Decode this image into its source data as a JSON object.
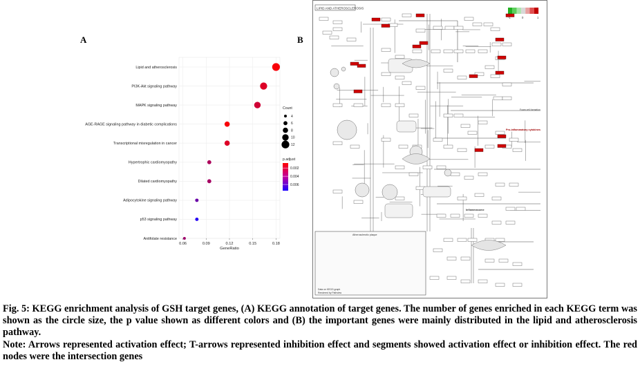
{
  "panel_a": {
    "letter": "A"
  },
  "panel_b": {
    "letter": "B",
    "map_title": "LIPID AND ATHEROSCLEROSIS",
    "legend_ticks": [
      "-1",
      "0",
      "1"
    ],
    "section_labels": [
      "Inflammasome",
      "Pro-inflammatory cytokines",
      "Atherosclerotic plaque",
      "Foam cell formation"
    ],
    "footer": [
      "Data on KEGG graph",
      "Rendered by Pathview"
    ],
    "red_node_color": "#d00000"
  },
  "chart_data": {
    "type": "scatter",
    "title": "",
    "xlabel": "GeneRatio",
    "ylabel": "",
    "xlim": [
      0.055,
      0.185
    ],
    "xticks": [
      "0.06",
      "0.09",
      "0.12",
      "0.15",
      "0.18"
    ],
    "xtick_values": [
      0.06,
      0.09,
      0.12,
      0.15,
      0.18
    ],
    "grid": true,
    "categories": [
      "Lipid and atherosclerosis",
      "PI3K-Akt signaling pathway",
      "MAPK signaling pathway",
      "AGE-RAGE signaling pathway in diabetic complications",
      "Transcriptional misregulation in cancer",
      "Hypertrophic cardiomyopathy",
      "Dilated cardiomyopathy",
      "Adipocytokine signaling pathway",
      "p53 signaling pathway",
      "Antifolate resistance"
    ],
    "gene_ratio": [
      0.18,
      0.164,
      0.156,
      0.117,
      0.117,
      0.094,
      0.094,
      0.078,
      0.078,
      0.062
    ],
    "count": [
      12,
      11,
      10,
      8,
      8,
      6,
      6,
      5,
      5,
      4
    ],
    "p_adjust": [
      0.001,
      0.0018,
      0.0022,
      0.001,
      0.0018,
      0.0032,
      0.0034,
      0.0052,
      0.0072,
      0.0036
    ],
    "legend_count": {
      "title": "Count",
      "values": [
        4,
        6,
        8,
        10,
        12
      ]
    },
    "legend_color": {
      "title": "p.adjust",
      "ticks": [
        0.002,
        0.004,
        0.006
      ],
      "tick_labels": [
        "0.002",
        "0.004",
        "0.006"
      ],
      "range": [
        0.0008,
        0.0075
      ],
      "low_color": "#ff0000",
      "high_color": "#1a00ff"
    }
  },
  "caption": {
    "line1": "Fig. 5: KEGG enrichment analysis of GSH target genes, (A) KEGG annotation of target genes. The number of genes enriched in each KEGG term was shown as the circle size, the p value shown as different colors and (B) the important genes were mainly distributed in the lipid and atherosclerosis pathway.",
    "line2": "Note: Arrows represented activation effect; T-arrows represented inhibition effect and segments showed activation effect or inhibition effect. The red nodes were the intersection genes"
  }
}
